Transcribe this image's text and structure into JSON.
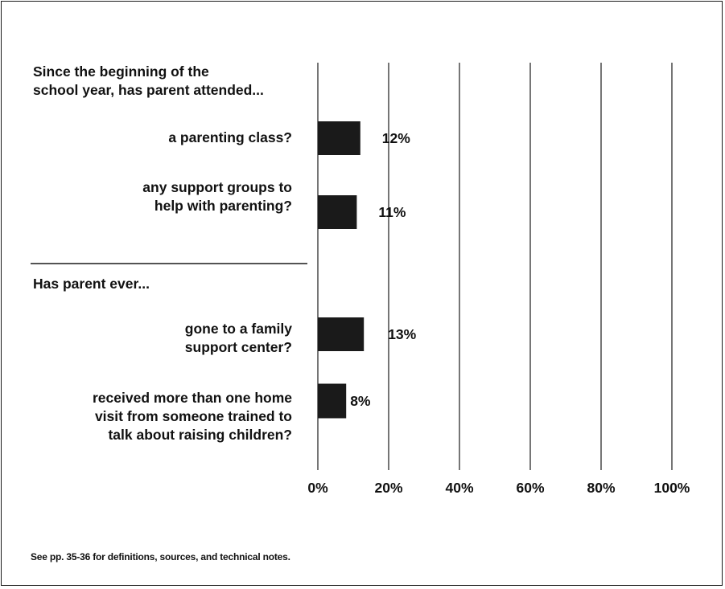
{
  "chart_data": {
    "type": "bar",
    "orientation": "horizontal",
    "groups": [
      {
        "heading": "Since the beginning of the school year, has parent attended...",
        "heading_lines": [
          "Since the beginning of the",
          "school year, has parent attended..."
        ],
        "items": [
          {
            "label_lines": [
              "a parenting class?"
            ],
            "value": 12,
            "value_label": "12%"
          },
          {
            "label_lines": [
              "any support groups to",
              "help with parenting?"
            ],
            "value": 11,
            "value_label": "11%"
          }
        ]
      },
      {
        "heading": "Has parent ever...",
        "heading_lines": [
          "Has parent ever..."
        ],
        "items": [
          {
            "label_lines": [
              "gone to a family",
              "support center?"
            ],
            "value": 13,
            "value_label": "13%"
          },
          {
            "label_lines": [
              "received more than one home",
              "visit from someone trained to",
              "talk about raising children?"
            ],
            "value": 8,
            "value_label": "8%"
          }
        ]
      }
    ],
    "xlim": [
      0,
      100
    ],
    "tick_values": [
      0,
      20,
      40,
      60,
      80,
      100
    ],
    "tick_labels": [
      "0%",
      "20%",
      "40%",
      "60%",
      "80%",
      "100%"
    ],
    "grid": true,
    "bar_color": "#1a1a1a"
  },
  "footnote": "See pp. 35-36 for definitions, sources, and technical notes."
}
